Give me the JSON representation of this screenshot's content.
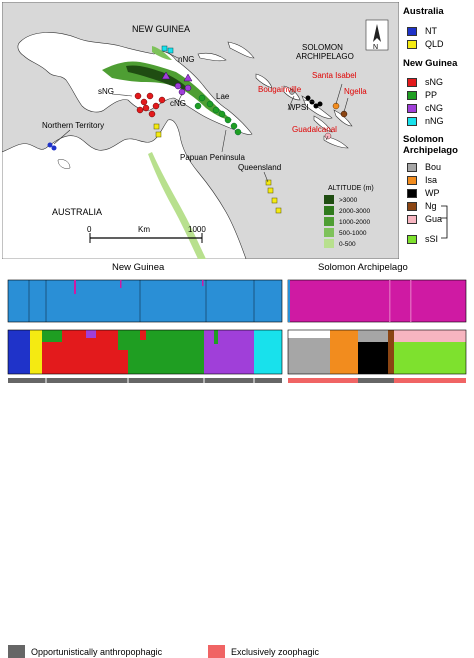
{
  "map": {
    "place_labels": {
      "new_guinea": "NEW GUINEA",
      "solomon_1": "SOLOMON",
      "solomon_2": "ARCHIPELAGO",
      "australia": "AUSTRALIA",
      "northern_territory": "Northern Territory",
      "queensland": "Queensland",
      "papuan_peninsula": "Papuan Peninsula",
      "lae": "Lae",
      "sng": "sNG",
      "cng": "cNG",
      "nng": "nNG",
      "wpsi": "WPSI",
      "bougainville": "Bougainville",
      "santa_isabel": "Santa Isabel",
      "ngella": "Ngella",
      "guadalcanal": "Guadalcanal"
    },
    "north_arrow": "N",
    "scale": {
      "zero": "0",
      "unit": "Km",
      "max": "1000"
    },
    "altitude": {
      "title": "ALTITUDE (m)",
      "classes": [
        {
          "label": ">3000",
          "color": "#1f4d12"
        },
        {
          "label": "2000-3000",
          "color": "#2f7a1d"
        },
        {
          "label": "1000-2000",
          "color": "#4e9e33"
        },
        {
          "label": "500-1000",
          "color": "#7ec25a"
        },
        {
          "label": "0-500",
          "color": "#b8e08e"
        }
      ]
    }
  },
  "legend": {
    "australia_title": "Australia",
    "australia": [
      {
        "label": "NT",
        "color": "#1f33c9"
      },
      {
        "label": "QLD",
        "color": "#f4ea12"
      }
    ],
    "new_guinea_title": "New Guinea",
    "new_guinea": [
      {
        "label": "sNG",
        "color": "#e31a1c"
      },
      {
        "label": "PP",
        "color": "#1f9e22"
      },
      {
        "label": "cNG",
        "color": "#a03fd9"
      },
      {
        "label": "nNG",
        "color": "#18e1ec"
      }
    ],
    "solomon_title_1": "Solomon",
    "solomon_title_2": "Archipelago",
    "solomon": [
      {
        "label": "Bou",
        "color": "#a6a6a6"
      },
      {
        "label": "Isa",
        "color": "#f28c1e"
      },
      {
        "label": "WP",
        "color": "#000000"
      },
      {
        "label": "Ng",
        "color": "#8b4513"
      },
      {
        "label": "Gua",
        "color": "#f7b5c0"
      },
      {
        "label": "sSI",
        "color": "#7ee12e"
      }
    ]
  },
  "structure": {
    "new_guinea_label": "New Guinea",
    "solomon_label": "Solomon Archipelago"
  },
  "key": {
    "anthropophagic": {
      "label": "Opportunistically anthropophagic",
      "color": "#666666"
    },
    "zoophagic": {
      "label": "Exclusively zoophagic",
      "color": "#f06464"
    }
  },
  "colors": {
    "k2_blue": "#2a8fd6",
    "k2_magenta": "#cf1aa3",
    "sea": "#d8d8d8",
    "land": "#ffffff"
  }
}
